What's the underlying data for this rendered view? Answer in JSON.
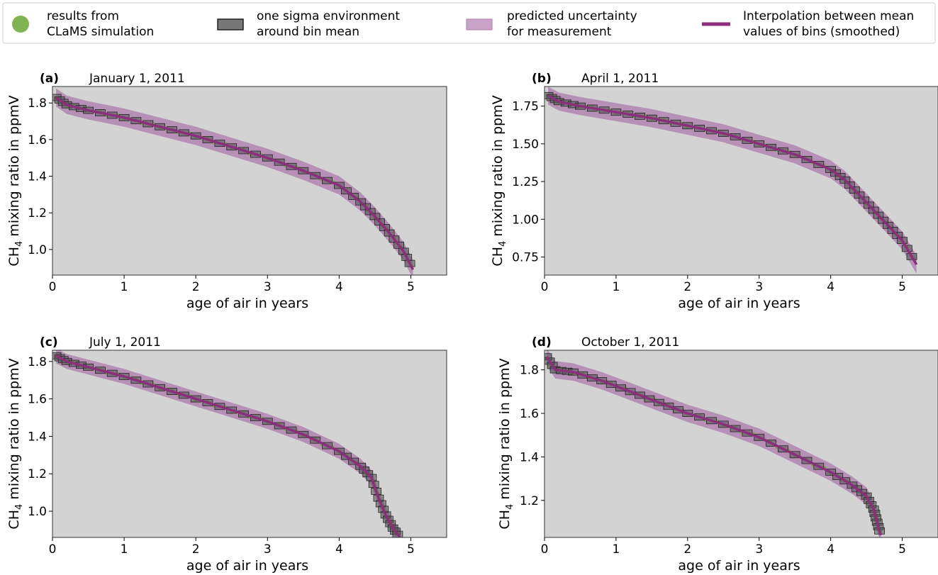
{
  "legend": {
    "items": [
      {
        "kind": "dot",
        "color": "#6aa632",
        "line1": "results from",
        "line2": "CLaMS simulation"
      },
      {
        "kind": "bin",
        "color": "#707070",
        "line1": "one sigma environment",
        "line2": "around bin mean"
      },
      {
        "kind": "band",
        "color": "#c9a2c8",
        "line1": "predicted uncertainty",
        "line2": "for measurement"
      },
      {
        "kind": "line",
        "color": "#8b2e7c",
        "line1": "Interpolation between mean",
        "line2": "values of bins (smoothed)"
      }
    ]
  },
  "colors": {
    "plot_bg": "#d3d3d3",
    "simulation": "#6aa632",
    "bin_fill": "#555555",
    "band": "#a05a9e",
    "mean_line": "#8b2e7c"
  },
  "chart_data": [
    {
      "type": "line",
      "tag": "(a)",
      "title": "January 1, 2011",
      "xlabel": "age of air in years",
      "ylabel": "CH4 mixing ratio in ppmV",
      "xlim": [
        0,
        5.5
      ],
      "ylim": [
        0.86,
        1.89
      ],
      "xticks": [
        "0",
        "1",
        "2",
        "3",
        "4",
        "5"
      ],
      "yticks": [
        "1.0",
        "1.2",
        "1.4",
        "1.6",
        "1.8"
      ],
      "grid": false,
      "x": [
        0.05,
        0.2,
        0.5,
        1.0,
        1.5,
        2.0,
        2.5,
        3.0,
        3.5,
        4.0,
        4.3,
        4.5,
        4.7,
        4.9,
        5.03
      ],
      "mean": [
        1.83,
        1.79,
        1.76,
        1.72,
        1.67,
        1.62,
        1.56,
        1.5,
        1.43,
        1.35,
        1.26,
        1.18,
        1.09,
        0.99,
        0.89
      ],
      "band_halfwidth": 0.05
    },
    {
      "type": "line",
      "tag": "(b)",
      "title": "April 1, 2011",
      "xlabel": "age of air in years",
      "ylabel": "CH4 mixing ratio in ppmV",
      "xlim": [
        0,
        5.5
      ],
      "ylim": [
        0.63,
        1.88
      ],
      "xticks": [
        "0",
        "1",
        "2",
        "3",
        "4",
        "5"
      ],
      "yticks": [
        "0.75",
        "1.00",
        "1.25",
        "1.50",
        "1.75"
      ],
      "grid": false,
      "x": [
        0.05,
        0.2,
        0.5,
        1.0,
        1.5,
        2.0,
        2.5,
        3.0,
        3.5,
        4.0,
        4.2,
        4.4,
        4.6,
        4.8,
        5.0,
        5.2
      ],
      "mean": [
        1.82,
        1.78,
        1.75,
        1.71,
        1.67,
        1.62,
        1.57,
        1.5,
        1.43,
        1.33,
        1.26,
        1.16,
        1.06,
        0.96,
        0.86,
        0.7
      ],
      "band_halfwidth": 0.06
    },
    {
      "type": "line",
      "tag": "(c)",
      "title": "July 1, 2011",
      "xlabel": "age of air in years",
      "ylabel": "CH4 mixing ratio in ppmV",
      "xlim": [
        0,
        5.5
      ],
      "ylim": [
        0.86,
        1.86
      ],
      "xticks": [
        "0",
        "1",
        "2",
        "3",
        "4",
        "5"
      ],
      "yticks": [
        "1.0",
        "1.2",
        "1.4",
        "1.6",
        "1.8"
      ],
      "grid": false,
      "x": [
        0.05,
        0.2,
        0.5,
        1.0,
        1.5,
        2.0,
        2.5,
        3.0,
        3.5,
        4.0,
        4.3,
        4.45,
        4.55,
        4.65,
        4.75,
        4.85
      ],
      "mean": [
        1.83,
        1.8,
        1.77,
        1.72,
        1.66,
        1.6,
        1.54,
        1.48,
        1.41,
        1.32,
        1.24,
        1.18,
        1.07,
        0.98,
        0.91,
        0.86
      ],
      "band_halfwidth": 0.04
    },
    {
      "type": "line",
      "tag": "(d)",
      "title": "October 1, 2011",
      "xlabel": "age of air in years",
      "ylabel": "CH4 mixing ratio in ppmV",
      "xlim": [
        0,
        5.5
      ],
      "ylim": [
        1.03,
        1.89
      ],
      "xticks": [
        "0",
        "1",
        "2",
        "3",
        "4",
        "5"
      ],
      "yticks": [
        "1.2",
        "1.4",
        "1.6",
        "1.8"
      ],
      "grid": false,
      "x": [
        0.03,
        0.15,
        0.4,
        0.8,
        1.2,
        1.6,
        2.0,
        2.5,
        3.0,
        3.5,
        4.0,
        4.3,
        4.5,
        4.6,
        4.65,
        4.7
      ],
      "mean": [
        1.86,
        1.8,
        1.79,
        1.75,
        1.7,
        1.65,
        1.6,
        1.55,
        1.49,
        1.41,
        1.33,
        1.27,
        1.22,
        1.16,
        1.1,
        1.04
      ],
      "band_halfwidth": 0.04
    }
  ]
}
